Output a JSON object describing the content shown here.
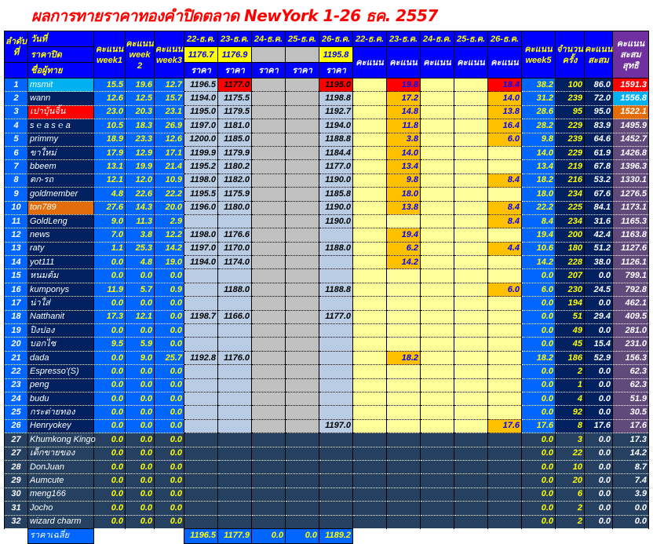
{
  "title": "ผลการทายราคาทองคำปิดตลาด NewYork 1-26 ธค. 2557",
  "header": {
    "day": "วันที่",
    "close_price": "ราคาปิด",
    "player": "ชื่อผู้ทาย",
    "rank": "ลำดับที่",
    "week1": [
      "คะแนน",
      "week1"
    ],
    "week2": [
      "คะแนน",
      "week",
      "2"
    ],
    "week3": [
      "คะแนน",
      "week3"
    ],
    "dates": [
      "22-ธ.ค.",
      "23-ธ.ค.",
      "24-ธ.ค.",
      "25-ธ.ค.",
      "26-ธ.ค."
    ],
    "close_values": [
      "1176.7",
      "1176.9",
      "",
      "",
      "1195.8"
    ],
    "price": "ราคา",
    "score": "คะแนน",
    "week5": [
      "คะแนน",
      "week5"
    ],
    "count": [
      "จำนวน",
      "ครั้ง"
    ],
    "accum": [
      "คะแนน",
      "สะสม"
    ],
    "net": [
      "คะแนน",
      "สะสมสุทธิ"
    ]
  },
  "colors": {
    "red": "#ff0000",
    "cyan": "#00b0f0",
    "orange": "#e26b0a",
    "score_highlight": "#ffc000"
  },
  "rows": [
    {
      "r": "1",
      "n": "msmit",
      "w": [
        "15.5",
        "19.6",
        "12.7"
      ],
      "p": [
        "1196.5",
        "1177.0",
        "",
        "",
        "1195.0"
      ],
      "s": [
        "",
        "19.8",
        "",
        "",
        "18.4"
      ],
      "w5": "38.2",
      "c": "100",
      "a": "86.0",
      "t": "1591.3",
      "nc": "#00b0f0",
      "tc": "#ff0000",
      "red": [
        1,
        4
      ]
    },
    {
      "r": "2",
      "n": "wann",
      "w": [
        "12.6",
        "12.5",
        "15.7"
      ],
      "p": [
        "1194.0",
        "1175.5",
        "",
        "",
        "1198.8"
      ],
      "s": [
        "",
        "17.2",
        "",
        "",
        "14.0"
      ],
      "w5": "31.2",
      "c": "239",
      "a": "72.0",
      "t": "1556.8",
      "tc": "#00b0f0"
    },
    {
      "r": "3",
      "n": "เปาบุ้นจิ้น",
      "w": [
        "23.0",
        "20.3",
        "23.1"
      ],
      "p": [
        "1195.0",
        "1179.5",
        "",
        "",
        "1192.7"
      ],
      "s": [
        "",
        "14.8",
        "",
        "",
        "13.8"
      ],
      "w5": "28.6",
      "c": "95",
      "a": "95.0",
      "t": "1522.1",
      "nc": "#ff0000",
      "tc": "#e26b0a"
    },
    {
      "r": "4",
      "n": "s ℮ a s ℮ a",
      "w": [
        "10.5",
        "18.3",
        "26.9"
      ],
      "p": [
        "1197.0",
        "1181.0",
        "",
        "",
        "1194.0"
      ],
      "s": [
        "",
        "11.8",
        "",
        "",
        "16.4"
      ],
      "w5": "28.2",
      "c": "229",
      "a": "83.9",
      "t": "1495.9"
    },
    {
      "r": "5",
      "n": "primmy",
      "w": [
        "18.9",
        "23.3",
        "12.6"
      ],
      "p": [
        "1200.0",
        "1185.0",
        "",
        "",
        "1188.8"
      ],
      "s": [
        "",
        "3.8",
        "",
        "",
        "6.0"
      ],
      "w5": "9.8",
      "c": "239",
      "a": "64.6",
      "t": "1452.7"
    },
    {
      "r": "6",
      "n": "ขาใหม่",
      "w": [
        "17.9",
        "12.9",
        "17.1"
      ],
      "p": [
        "1199.9",
        "1179.9",
        "",
        "",
        "1184.4"
      ],
      "s": [
        "",
        "14.0",
        "",
        "",
        ""
      ],
      "w5": "14.0",
      "c": "229",
      "a": "61.9",
      "t": "1426.8"
    },
    {
      "r": "7",
      "n": "bbeem",
      "w": [
        "13.1",
        "19.9",
        "21.4"
      ],
      "p": [
        "1195.2",
        "1180.2",
        "",
        "",
        "1177.0"
      ],
      "s": [
        "",
        "13.4",
        "",
        "",
        ""
      ],
      "w5": "13.4",
      "c": "219",
      "a": "67.8",
      "t": "1396.3"
    },
    {
      "r": "8",
      "n": "ตก-รถ",
      "w": [
        "12.1",
        "12.0",
        "10.9"
      ],
      "p": [
        "1198.0",
        "1182.0",
        "",
        "",
        "1190.0"
      ],
      "s": [
        "",
        "9.8",
        "",
        "",
        "8.4"
      ],
      "w5": "18.2",
      "c": "216",
      "a": "53.2",
      "t": "1330.1"
    },
    {
      "r": "9",
      "n": "goldmember",
      "w": [
        "4.8",
        "22.6",
        "22.2"
      ],
      "p": [
        "1195.5",
        "1175.9",
        "",
        "",
        "1185.8"
      ],
      "s": [
        "",
        "18.0",
        "",
        "",
        ""
      ],
      "w5": "18.0",
      "c": "234",
      "a": "67.6",
      "t": "1276.5"
    },
    {
      "r": "10",
      "n": "ton789",
      "w": [
        "27.6",
        "14.3",
        "20.0"
      ],
      "p": [
        "1196.0",
        "1180.0",
        "",
        "",
        "1190.0"
      ],
      "s": [
        "",
        "13.8",
        "",
        "",
        "8.4"
      ],
      "w5": "22.2",
      "c": "225",
      "a": "84.1",
      "t": "1173.1",
      "nc": "#e26b0a"
    },
    {
      "r": "11",
      "n": "GoldLeng",
      "w": [
        "9.0",
        "11.3",
        "2.9"
      ],
      "p": [
        "",
        "",
        "",
        "",
        "1190.0"
      ],
      "s": [
        "",
        "",
        "",
        "",
        "8.4"
      ],
      "w5": "8.4",
      "c": "234",
      "a": "31.6",
      "t": "1165.3"
    },
    {
      "r": "12",
      "n": "news",
      "w": [
        "7.0",
        "3.8",
        "12.2"
      ],
      "p": [
        "1198.0",
        "1176.6",
        "",
        "",
        ""
      ],
      "s": [
        "",
        "19.4",
        "",
        "",
        ""
      ],
      "w5": "19.4",
      "c": "200",
      "a": "42.4",
      "t": "1163.8"
    },
    {
      "r": "13",
      "n": "raty",
      "w": [
        "1.1",
        "25.3",
        "14.2"
      ],
      "p": [
        "1197.0",
        "1170.0",
        "",
        "",
        "1188.0"
      ],
      "s": [
        "",
        "6.2",
        "",
        "",
        "4.4"
      ],
      "w5": "10.6",
      "c": "180",
      "a": "51.2",
      "t": "1127.6"
    },
    {
      "r": "14",
      "n": "yot111",
      "w": [
        "0.0",
        "4.8",
        "19.0"
      ],
      "p": [
        "1194.0",
        "1174.0",
        "",
        "",
        ""
      ],
      "s": [
        "",
        "14.2",
        "",
        "",
        ""
      ],
      "w5": "14.2",
      "c": "228",
      "a": "38.0",
      "t": "1126.1"
    },
    {
      "r": "15",
      "n": "หนมต้ม",
      "w": [
        "0.0",
        "0.0",
        "0.0"
      ],
      "p": [
        "",
        "",
        "",
        "",
        ""
      ],
      "s": [
        "",
        "",
        "",
        "",
        ""
      ],
      "w5": "0.0",
      "c": "207",
      "a": "0.0",
      "t": "799.1"
    },
    {
      "r": "16",
      "n": "kumponys",
      "w": [
        "11.9",
        "5.7",
        "0.9"
      ],
      "p": [
        "",
        "1188.0",
        "",
        "",
        "1188.8"
      ],
      "s": [
        "",
        "",
        "",
        "",
        "6.0"
      ],
      "w5": "6.0",
      "c": "230",
      "a": "24.5",
      "t": "792.8"
    },
    {
      "r": "17",
      "n": "น่าใส่",
      "w": [
        "0.0",
        "0.0",
        "0.0"
      ],
      "p": [
        "",
        "",
        "",
        "",
        ""
      ],
      "s": [
        "",
        "",
        "",
        "",
        ""
      ],
      "w5": "0.0",
      "c": "194",
      "a": "0.0",
      "t": "462.1"
    },
    {
      "r": "18",
      "n": "Natthanit",
      "w": [
        "17.3",
        "12.1",
        "0.0"
      ],
      "p": [
        "1198.7",
        "1166.0",
        "",
        "",
        "1177.0"
      ],
      "s": [
        "",
        "",
        "",
        "",
        ""
      ],
      "w5": "0.0",
      "c": "51",
      "a": "29.4",
      "t": "409.5"
    },
    {
      "r": "19",
      "n": "ปิงปอง",
      "w": [
        "0.0",
        "0.0",
        "0.0"
      ],
      "p": [
        "",
        "",
        "",
        "",
        ""
      ],
      "s": [
        "",
        "",
        "",
        "",
        ""
      ],
      "w5": "0.0",
      "c": "49",
      "a": "0.0",
      "t": "281.0"
    },
    {
      "r": "20",
      "n": "บอกไซ",
      "w": [
        "9.5",
        "5.9",
        "0.0"
      ],
      "p": [
        "",
        "",
        "",
        "",
        ""
      ],
      "s": [
        "",
        "",
        "",
        "",
        ""
      ],
      "w5": "0.0",
      "c": "45",
      "a": "15.4",
      "t": "231.0"
    },
    {
      "r": "21",
      "n": "dada",
      "w": [
        "0.0",
        "9.0",
        "25.7"
      ],
      "p": [
        "1192.8",
        "1176.0",
        "",
        "",
        ""
      ],
      "s": [
        "",
        "18.2",
        "",
        "",
        ""
      ],
      "w5": "18.2",
      "c": "186",
      "a": "52.9",
      "t": "156.3"
    },
    {
      "r": "22",
      "n": "Espresso'(S)",
      "w": [
        "0.0",
        "0.0",
        "0.0"
      ],
      "p": [
        "",
        "",
        "",
        "",
        ""
      ],
      "s": [
        "",
        "",
        "",
        "",
        ""
      ],
      "w5": "0.0",
      "c": "2",
      "a": "0.0",
      "t": "62.3"
    },
    {
      "r": "23",
      "n": "peng",
      "w": [
        "0.0",
        "0.0",
        "0.0"
      ],
      "p": [
        "",
        "",
        "",
        "",
        ""
      ],
      "s": [
        "",
        "",
        "",
        "",
        ""
      ],
      "w5": "0.0",
      "c": "1",
      "a": "0.0",
      "t": "62.3"
    },
    {
      "r": "24",
      "n": "budu",
      "w": [
        "0.0",
        "0.0",
        "0.0"
      ],
      "p": [
        "",
        "",
        "",
        "",
        ""
      ],
      "s": [
        "",
        "",
        "",
        "",
        ""
      ],
      "w5": "0.0",
      "c": "4",
      "a": "0.0",
      "t": "51.9"
    },
    {
      "r": "25",
      "n": "กระต่ายทอง",
      "w": [
        "0.0",
        "0.0",
        "0.0"
      ],
      "p": [
        "",
        "",
        "",
        "",
        ""
      ],
      "s": [
        "",
        "",
        "",
        "",
        ""
      ],
      "w5": "0.0",
      "c": "92",
      "a": "0.0",
      "t": "30.5"
    },
    {
      "r": "26",
      "n": "Henryokey",
      "w": [
        "0.0",
        "0.0",
        "0.0"
      ],
      "p": [
        "",
        "",
        "",
        "",
        "1197.0"
      ],
      "s": [
        "",
        "",
        "",
        "",
        "17.6"
      ],
      "w5": "17.6",
      "c": "8",
      "a": "17.6",
      "t": "17.6"
    },
    {
      "r": "27",
      "n": "Khumkong Kingo",
      "w": [
        "0.0",
        "0.0",
        "0.0"
      ],
      "p": [
        "",
        "",
        "",
        "",
        ""
      ],
      "s": [
        "",
        "",
        "",
        "",
        ""
      ],
      "w5": "0.0",
      "c": "3",
      "a": "0.0",
      "t": "17.3",
      "dark": true
    },
    {
      "r": "27",
      "n": "เด็กขายของ",
      "w": [
        "0.0",
        "0.0",
        "0.0"
      ],
      "p": [
        "",
        "",
        "",
        "",
        ""
      ],
      "s": [
        "",
        "",
        "",
        "",
        ""
      ],
      "w5": "0.0",
      "c": "22",
      "a": "0.0",
      "t": "14.2",
      "dark": true
    },
    {
      "r": "28",
      "n": "DonJuan",
      "w": [
        "0.0",
        "0.0",
        "0.0"
      ],
      "p": [
        "",
        "",
        "",
        "",
        ""
      ],
      "s": [
        "",
        "",
        "",
        "",
        ""
      ],
      "w5": "0.0",
      "c": "10",
      "a": "0.0",
      "t": "8.7",
      "dark": true
    },
    {
      "r": "29",
      "n": "Aumcute",
      "w": [
        "0.0",
        "0.0",
        "0.0"
      ],
      "p": [
        "",
        "",
        "",
        "",
        ""
      ],
      "s": [
        "",
        "",
        "",
        "",
        ""
      ],
      "w5": "0.0",
      "c": "20",
      "a": "0.0",
      "t": "7.4",
      "dark": true
    },
    {
      "r": "30",
      "n": "meng166",
      "w": [
        "0.0",
        "0.0",
        "0.0"
      ],
      "p": [
        "",
        "",
        "",
        "",
        ""
      ],
      "s": [
        "",
        "",
        "",
        "",
        ""
      ],
      "w5": "0.0",
      "c": "6",
      "a": "0.0",
      "t": "3.9",
      "dark": true
    },
    {
      "r": "31",
      "n": "Jocho",
      "w": [
        "0.0",
        "0.0",
        "0.0"
      ],
      "p": [
        "",
        "",
        "",
        "",
        ""
      ],
      "s": [
        "",
        "",
        "",
        "",
        ""
      ],
      "w5": "0.0",
      "c": "2",
      "a": "0.0",
      "t": "0.0",
      "dark": true
    },
    {
      "r": "32",
      "n": "wizard charm",
      "w": [
        "0.0",
        "0.0",
        "0.0"
      ],
      "p": [
        "",
        "",
        "",
        "",
        ""
      ],
      "s": [
        "",
        "",
        "",
        "",
        ""
      ],
      "w5": "0.0",
      "c": "2",
      "a": "0.0",
      "t": "0.0",
      "dark": true
    }
  ],
  "footer": {
    "label": "ราคาเฉลี่ย",
    "averages": [
      "1196.5",
      "1177.9",
      "0.0",
      "0.0",
      "1189.2"
    ]
  }
}
